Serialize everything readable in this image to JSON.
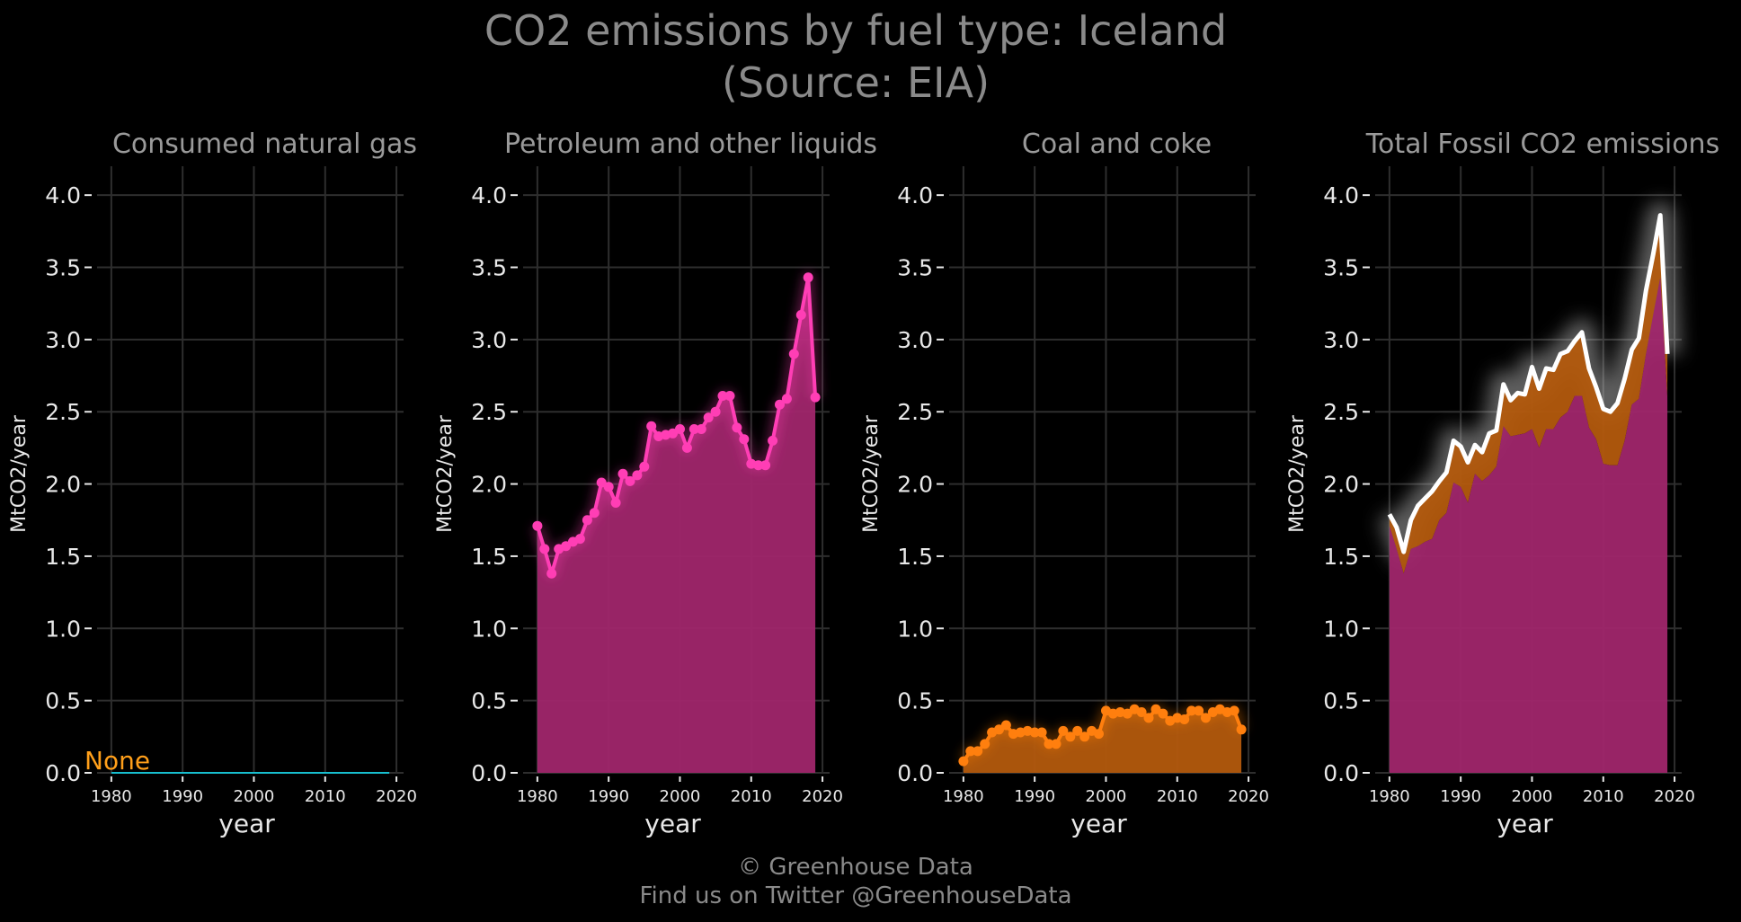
{
  "title": "CO2 emissions by fuel type: Iceland",
  "subtitle": "(Source: EIA)",
  "footer": {
    "copyright": "© Greenhouse Data",
    "twitter": "Find us on Twitter @GreenhouseData"
  },
  "colors": {
    "background": "#000000",
    "petroleum": "#ff3eb5",
    "petroleum_fill": "#a0266c",
    "coal": "#ff7f0e",
    "coal_fill": "#b35a0d",
    "gas": "#17becf",
    "gas_label": "#ff9f1a",
    "total_line": "#ffffff"
  },
  "chart_data": [
    {
      "type": "line",
      "title": "Consumed natural gas",
      "xlabel": "year",
      "ylabel": "MtCO2/year",
      "xlim": [
        1978,
        2021
      ],
      "ylim": [
        0,
        4.2
      ],
      "xticks": [
        "1980",
        "1990",
        "2000",
        "2010",
        "2020"
      ],
      "yticks": [
        "0.0",
        "0.5",
        "1.0",
        "1.5",
        "2.0",
        "2.5",
        "3.0",
        "3.5",
        "4.0"
      ],
      "grid": true,
      "annotation": "None",
      "series": [
        {
          "x": [
            1980,
            2019
          ],
          "values": [
            0,
            0
          ]
        }
      ]
    },
    {
      "type": "area",
      "title": "Petroleum and other liquids",
      "xlabel": "year",
      "ylabel": "MtCO2/year",
      "xlim": [
        1978,
        2021
      ],
      "ylim": [
        0,
        4.2
      ],
      "xticks": [
        "1980",
        "1990",
        "2000",
        "2010",
        "2020"
      ],
      "yticks": [
        "0.0",
        "0.5",
        "1.0",
        "1.5",
        "2.0",
        "2.5",
        "3.0",
        "3.5",
        "4.0"
      ],
      "grid": true,
      "series": [
        {
          "x": [
            1980,
            1981,
            1982,
            1983,
            1984,
            1985,
            1986,
            1987,
            1988,
            1989,
            1990,
            1991,
            1992,
            1993,
            1994,
            1995,
            1996,
            1997,
            1998,
            1999,
            2000,
            2001,
            2002,
            2003,
            2004,
            2005,
            2006,
            2007,
            2008,
            2009,
            2010,
            2011,
            2012,
            2013,
            2014,
            2015,
            2016,
            2017,
            2018,
            2019
          ],
          "values": [
            1.71,
            1.55,
            1.38,
            1.55,
            1.57,
            1.6,
            1.62,
            1.75,
            1.8,
            2.01,
            1.98,
            1.87,
            2.07,
            2.02,
            2.06,
            2.12,
            2.4,
            2.33,
            2.34,
            2.35,
            2.38,
            2.25,
            2.38,
            2.38,
            2.46,
            2.5,
            2.61,
            2.61,
            2.39,
            2.31,
            2.14,
            2.13,
            2.13,
            2.3,
            2.55,
            2.59,
            2.9,
            3.17,
            3.43,
            2.6
          ]
        }
      ]
    },
    {
      "type": "area",
      "title": "Coal and coke",
      "xlabel": "year",
      "ylabel": "MtCO2/year",
      "xlim": [
        1978,
        2021
      ],
      "ylim": [
        0,
        4.2
      ],
      "xticks": [
        "1980",
        "1990",
        "2000",
        "2010",
        "2020"
      ],
      "yticks": [
        "0.0",
        "0.5",
        "1.0",
        "1.5",
        "2.0",
        "2.5",
        "3.0",
        "3.5",
        "4.0"
      ],
      "grid": true,
      "series": [
        {
          "x": [
            1980,
            1981,
            1982,
            1983,
            1984,
            1985,
            1986,
            1987,
            1988,
            1989,
            1990,
            1991,
            1992,
            1993,
            1994,
            1995,
            1996,
            1997,
            1998,
            1999,
            2000,
            2001,
            2002,
            2003,
            2004,
            2005,
            2006,
            2007,
            2008,
            2009,
            2010,
            2011,
            2012,
            2013,
            2014,
            2015,
            2016,
            2017,
            2018,
            2019
          ],
          "values": [
            0.08,
            0.15,
            0.15,
            0.2,
            0.28,
            0.3,
            0.33,
            0.27,
            0.28,
            0.29,
            0.28,
            0.28,
            0.2,
            0.2,
            0.29,
            0.25,
            0.29,
            0.25,
            0.29,
            0.27,
            0.43,
            0.41,
            0.42,
            0.41,
            0.44,
            0.42,
            0.38,
            0.44,
            0.41,
            0.36,
            0.38,
            0.37,
            0.43,
            0.43,
            0.38,
            0.42,
            0.44,
            0.42,
            0.43,
            0.3
          ]
        }
      ]
    },
    {
      "type": "area",
      "title": "Total Fossil CO2 emissions",
      "xlabel": "year",
      "ylabel": "MtCO2/year",
      "xlim": [
        1978,
        2021
      ],
      "ylim": [
        0,
        4.2
      ],
      "xticks": [
        "1980",
        "1990",
        "2000",
        "2010",
        "2020"
      ],
      "yticks": [
        "0.0",
        "0.5",
        "1.0",
        "1.5",
        "2.0",
        "2.5",
        "3.0",
        "3.5",
        "4.0"
      ],
      "grid": true,
      "series": [
        {
          "x": [
            1980,
            1981,
            1982,
            1983,
            1984,
            1985,
            1986,
            1987,
            1988,
            1989,
            1990,
            1991,
            1992,
            1993,
            1994,
            1995,
            1996,
            1997,
            1998,
            1999,
            2000,
            2001,
            2002,
            2003,
            2004,
            2005,
            2006,
            2007,
            2008,
            2009,
            2010,
            2011,
            2012,
            2013,
            2014,
            2015,
            2016,
            2017,
            2018,
            2019
          ],
          "values": [
            1.79,
            1.7,
            1.53,
            1.75,
            1.85,
            1.9,
            1.95,
            2.02,
            2.08,
            2.3,
            2.26,
            2.15,
            2.27,
            2.22,
            2.35,
            2.37,
            2.69,
            2.58,
            2.63,
            2.62,
            2.81,
            2.66,
            2.8,
            2.79,
            2.9,
            2.92,
            2.99,
            3.05,
            2.8,
            2.67,
            2.52,
            2.5,
            2.56,
            2.73,
            2.93,
            3.01,
            3.34,
            3.59,
            3.86,
            2.9
          ]
        }
      ]
    }
  ]
}
